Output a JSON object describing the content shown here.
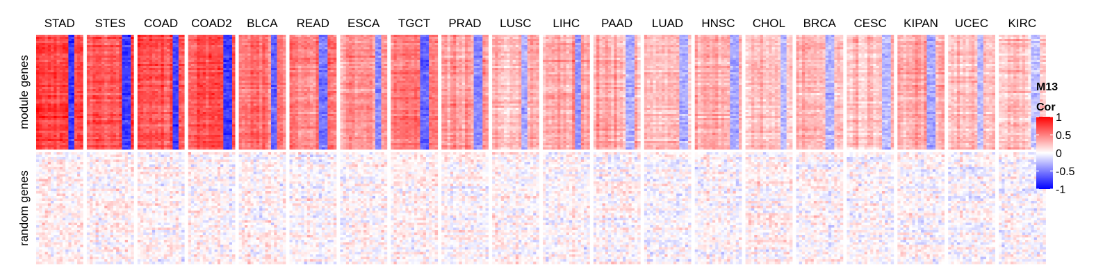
{
  "chart_data": {
    "type": "heatmap",
    "title": "",
    "columns": [
      "STAD",
      "STES",
      "COAD",
      "COAD2",
      "BLCA",
      "READ",
      "ESCA",
      "TGCT",
      "PRAD",
      "LUSC",
      "LIHC",
      "PAAD",
      "LUAD",
      "HNSC",
      "CHOL",
      "BRCA",
      "CESC",
      "KIPAN",
      "UCEC",
      "KIRC"
    ],
    "rows": [
      "module genes",
      "random genes"
    ],
    "mean_cor": {
      "module genes": [
        0.72,
        0.7,
        0.68,
        0.7,
        0.55,
        0.5,
        0.42,
        0.55,
        0.42,
        0.3,
        0.38,
        0.3,
        0.28,
        0.32,
        0.25,
        0.28,
        0.25,
        0.32,
        0.25,
        0.22
      ],
      "random genes": [
        0.05,
        0.04,
        0.03,
        0.03,
        0.02,
        0.02,
        0.03,
        0.06,
        0.02,
        0.02,
        0.02,
        0.02,
        0.01,
        0.02,
        0.05,
        0.02,
        0.02,
        0.03,
        0.01,
        0.01
      ]
    },
    "legend": {
      "title_line1": "M13",
      "title_line2": "Cor",
      "ticks": [
        {
          "value": 1,
          "label": "1"
        },
        {
          "value": 0.5,
          "label": "0.5"
        },
        {
          "value": 0,
          "label": "0"
        },
        {
          "value": -0.5,
          "label": "-0.5"
        },
        {
          "value": -1,
          "label": "-1"
        }
      ],
      "range": [
        -1,
        1
      ],
      "colors": {
        "high": "#ff0000",
        "mid": "#ffffff",
        "low": "#0000ff"
      }
    }
  }
}
